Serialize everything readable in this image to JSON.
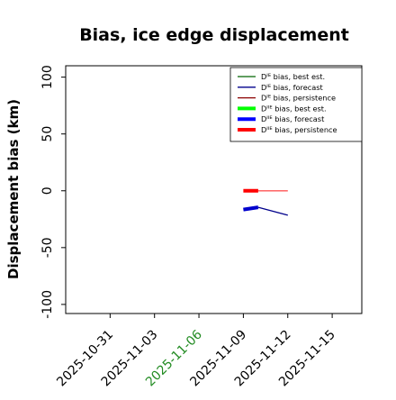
{
  "chart_data": {
    "type": "line",
    "title": "Bias, ice edge displacement",
    "xlabel": "",
    "ylabel": "Displacement bias (km)",
    "ylim": [
      -108,
      110
    ],
    "yticks": [
      100,
      50,
      0,
      -50,
      -100
    ],
    "xlim": [
      "2025-10-28",
      "2025-11-17"
    ],
    "xticks": [
      "2025-10-31",
      "2025-11-03",
      "2025-11-06",
      "2025-11-09",
      "2025-11-12",
      "2025-11-15"
    ],
    "xtick_highlight": {
      "label": "2025-11-06",
      "color": "#228B22"
    },
    "grid": false,
    "legend_position": "top-right",
    "legend": [
      {
        "label": "Dᴵᴱ bias, best est.",
        "color": "#006400",
        "style": "thin"
      },
      {
        "label": "Dᴵᴱ bias, forecast",
        "color": "#00008B",
        "style": "thin"
      },
      {
        "label": "Dᴵᴱ bias, persistence",
        "color": "#8B0000",
        "style": "thin"
      },
      {
        "label": "Dᴵᴵᴱ bias, best est.",
        "color": "#00FF00",
        "style": "thick"
      },
      {
        "label": "Dᴵᴵᴱ bias, forecast",
        "color": "#0000FF",
        "style": "thick"
      },
      {
        "label": "Dᴵᴵᴱ bias, persistence",
        "color": "#FF0000",
        "style": "thick"
      }
    ],
    "series": [
      {
        "name": "Dᴵᴱ bias, forecast",
        "color": "#00008B",
        "style": "thin",
        "x": [
          "2025-11-10",
          "2025-11-12"
        ],
        "y": [
          -14.5,
          -21.5
        ]
      },
      {
        "name": "Dᴵᴱ bias, persistence",
        "color": "#FF5555",
        "style": "thin",
        "x": [
          "2025-11-10",
          "2025-11-12"
        ],
        "y": [
          0,
          0
        ]
      },
      {
        "name": "Dᴵᴵᴱ bias, forecast",
        "color": "#0000CD",
        "style": "thick",
        "x": [
          "2025-11-09",
          "2025-11-10"
        ],
        "y": [
          -16.5,
          -14.5
        ]
      },
      {
        "name": "Dᴵᴵᴱ bias, persistence",
        "color": "#FF0000",
        "style": "thick",
        "x": [
          "2025-11-09",
          "2025-11-10"
        ],
        "y": [
          0,
          0
        ]
      }
    ]
  }
}
